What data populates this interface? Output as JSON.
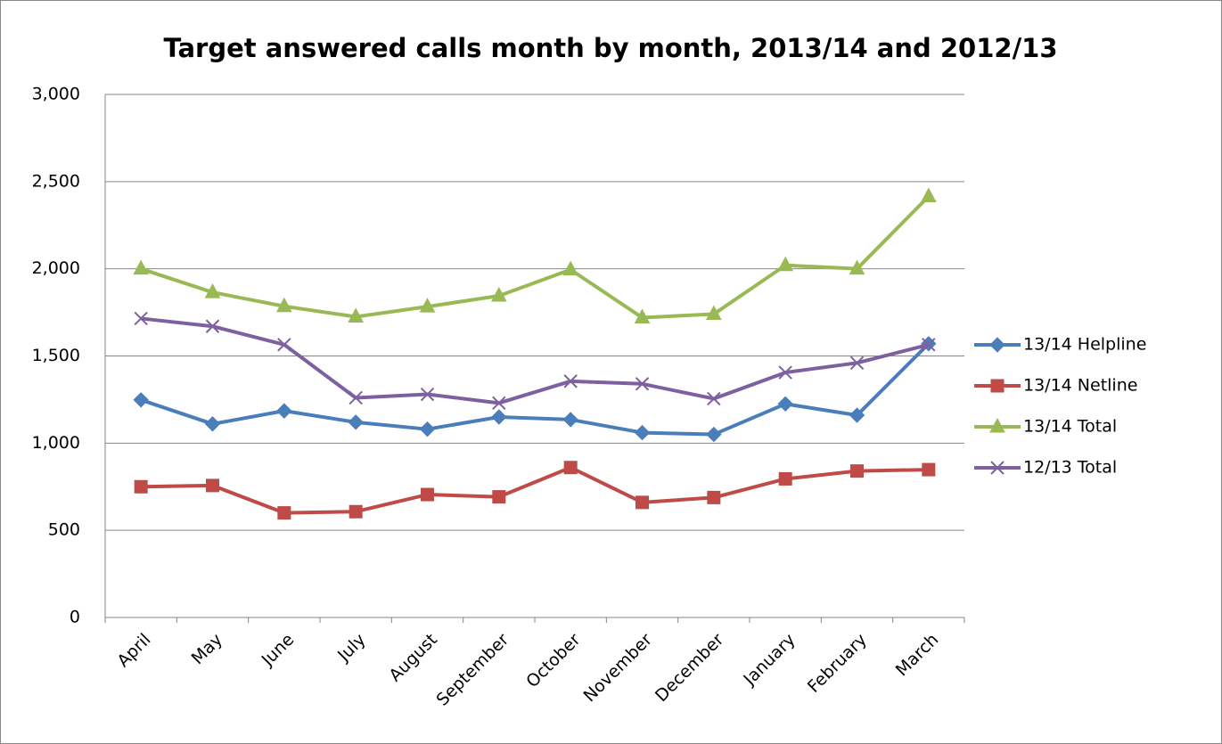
{
  "chart_data": {
    "type": "line",
    "title": "Target answered calls month by month, 2013/14 and 2012/13",
    "categories": [
      "April",
      "May",
      "June",
      "July",
      "August",
      "September",
      "October",
      "November",
      "December",
      "January",
      "February",
      "March"
    ],
    "series": [
      {
        "name": "13/14 Helpline",
        "color": "#4a7ebb",
        "marker": "diamond",
        "values": [
          1248,
          1110,
          1185,
          1120,
          1080,
          1150,
          1135,
          1060,
          1050,
          1225,
          1160,
          1570
        ]
      },
      {
        "name": "13/14 Netline",
        "color": "#be4b48",
        "marker": "square",
        "values": [
          750,
          757,
          600,
          607,
          705,
          692,
          860,
          660,
          688,
          795,
          840,
          848
        ]
      },
      {
        "name": "13/14 Total",
        "color": "#98b954",
        "marker": "triangle",
        "values": [
          2000,
          1865,
          1785,
          1725,
          1783,
          1845,
          1995,
          1720,
          1740,
          2020,
          2000,
          2415
        ]
      },
      {
        "name": "12/13 Total",
        "color": "#7d60a0",
        "marker": "x",
        "values": [
          1715,
          1670,
          1565,
          1260,
          1280,
          1230,
          1355,
          1340,
          1255,
          1405,
          1460,
          1565
        ]
      }
    ],
    "ylim": [
      0,
      3000
    ],
    "yticks": [
      0,
      500,
      {
        "value": 1000,
        "label": "1,000"
      },
      {
        "value": 1500,
        "label": "1,500"
      },
      {
        "value": 2000,
        "label": "2,000"
      },
      {
        "value": 2500,
        "label": "2,500"
      },
      {
        "value": 3000,
        "label": "3,000"
      }
    ],
    "grid": true,
    "legend": "right"
  }
}
